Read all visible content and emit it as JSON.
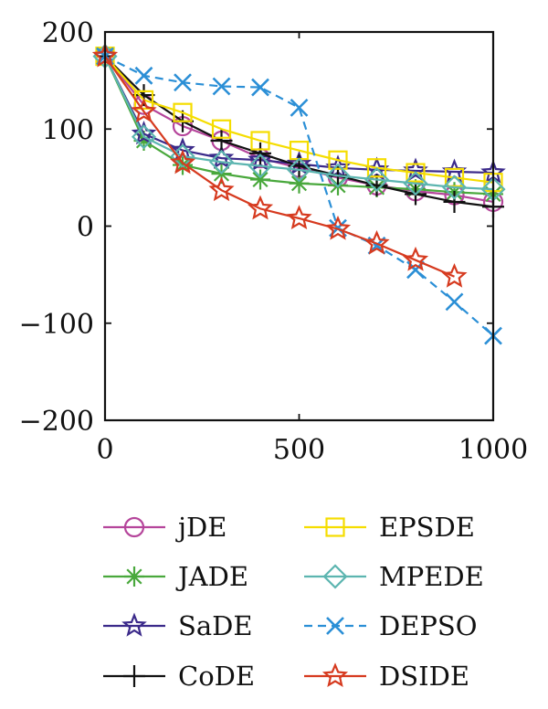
{
  "chart_data": {
    "type": "line",
    "title": "",
    "xlabel": "",
    "ylabel": "",
    "xlim": [
      0,
      1000
    ],
    "ylim": [
      -200,
      200
    ],
    "x_ticks": [
      0,
      500,
      1000
    ],
    "y_ticks": [
      200,
      100,
      0,
      -100,
      -200
    ],
    "x_tick_labels": [
      "0",
      "500",
      "1000"
    ],
    "y_tick_labels": [
      "200",
      "100",
      "0",
      "−100",
      "−200"
    ],
    "grid": false,
    "legend_position": "bottom (below plot, two columns)",
    "series": [
      {
        "name": "jDE",
        "color": "#b5459b",
        "marker": "circle",
        "dash": "solid",
        "x": [
          0,
          100,
          200,
          300,
          400,
          500,
          600,
          700,
          800,
          900,
          1000
        ],
        "y": [
          175,
          125,
          103,
          88,
          70,
          60,
          50,
          42,
          36,
          32,
          25
        ]
      },
      {
        "name": "JADE",
        "color": "#49a83c",
        "marker": "asterisk",
        "dash": "solid",
        "x": [
          0,
          100,
          200,
          300,
          400,
          500,
          600,
          700,
          800,
          900,
          1000
        ],
        "y": [
          175,
          88,
          63,
          54,
          48,
          44,
          42,
          40,
          38,
          35,
          33
        ]
      },
      {
        "name": "SaDE",
        "color": "#3b2a8a",
        "marker": "star5",
        "dash": "solid",
        "x": [
          0,
          100,
          200,
          300,
          400,
          500,
          600,
          700,
          800,
          900,
          1000
        ],
        "y": [
          175,
          95,
          78,
          70,
          68,
          64,
          60,
          58,
          57,
          56,
          55
        ]
      },
      {
        "name": "CoDE",
        "color": "#111111",
        "marker": "plus",
        "dash": "solid",
        "x": [
          0,
          100,
          200,
          300,
          400,
          500,
          600,
          700,
          800,
          900,
          1000
        ],
        "y": [
          175,
          135,
          108,
          88,
          75,
          62,
          52,
          42,
          33,
          25,
          20
        ]
      },
      {
        "name": "EPSDE",
        "color": "#f5dd00",
        "marker": "square",
        "dash": "solid",
        "x": [
          0,
          100,
          200,
          300,
          400,
          500,
          600,
          700,
          800,
          900,
          1000
        ],
        "y": [
          175,
          130,
          117,
          100,
          88,
          78,
          68,
          60,
          55,
          50,
          45
        ]
      },
      {
        "name": "MPEDE",
        "color": "#5cb5b0",
        "marker": "diamond",
        "dash": "solid",
        "x": [
          0,
          100,
          200,
          300,
          400,
          500,
          600,
          700,
          800,
          900,
          1000
        ],
        "y": [
          175,
          92,
          72,
          66,
          62,
          58,
          52,
          48,
          44,
          40,
          38
        ]
      },
      {
        "name": "DEPSO",
        "color": "#2b8fd6",
        "marker": "x",
        "dash": "dashed",
        "x": [
          0,
          100,
          200,
          300,
          400,
          500,
          600,
          700,
          800,
          900,
          1000
        ],
        "y": [
          175,
          155,
          148,
          144,
          143,
          122,
          -2,
          -20,
          -45,
          -78,
          -113
        ]
      },
      {
        "name": "DSIDE",
        "color": "#d63a1f",
        "marker": "star6",
        "dash": "solid",
        "x": [
          0,
          100,
          200,
          300,
          400,
          500,
          600,
          700,
          800,
          900
        ],
        "y": [
          175,
          118,
          65,
          37,
          18,
          8,
          -3,
          -18,
          -35,
          -52
        ]
      }
    ],
    "legend_columns": [
      [
        "jDE",
        "JADE",
        "SaDE",
        "CoDE"
      ],
      [
        "EPSDE",
        "MPEDE",
        "DEPSO",
        "DSIDE"
      ]
    ]
  }
}
